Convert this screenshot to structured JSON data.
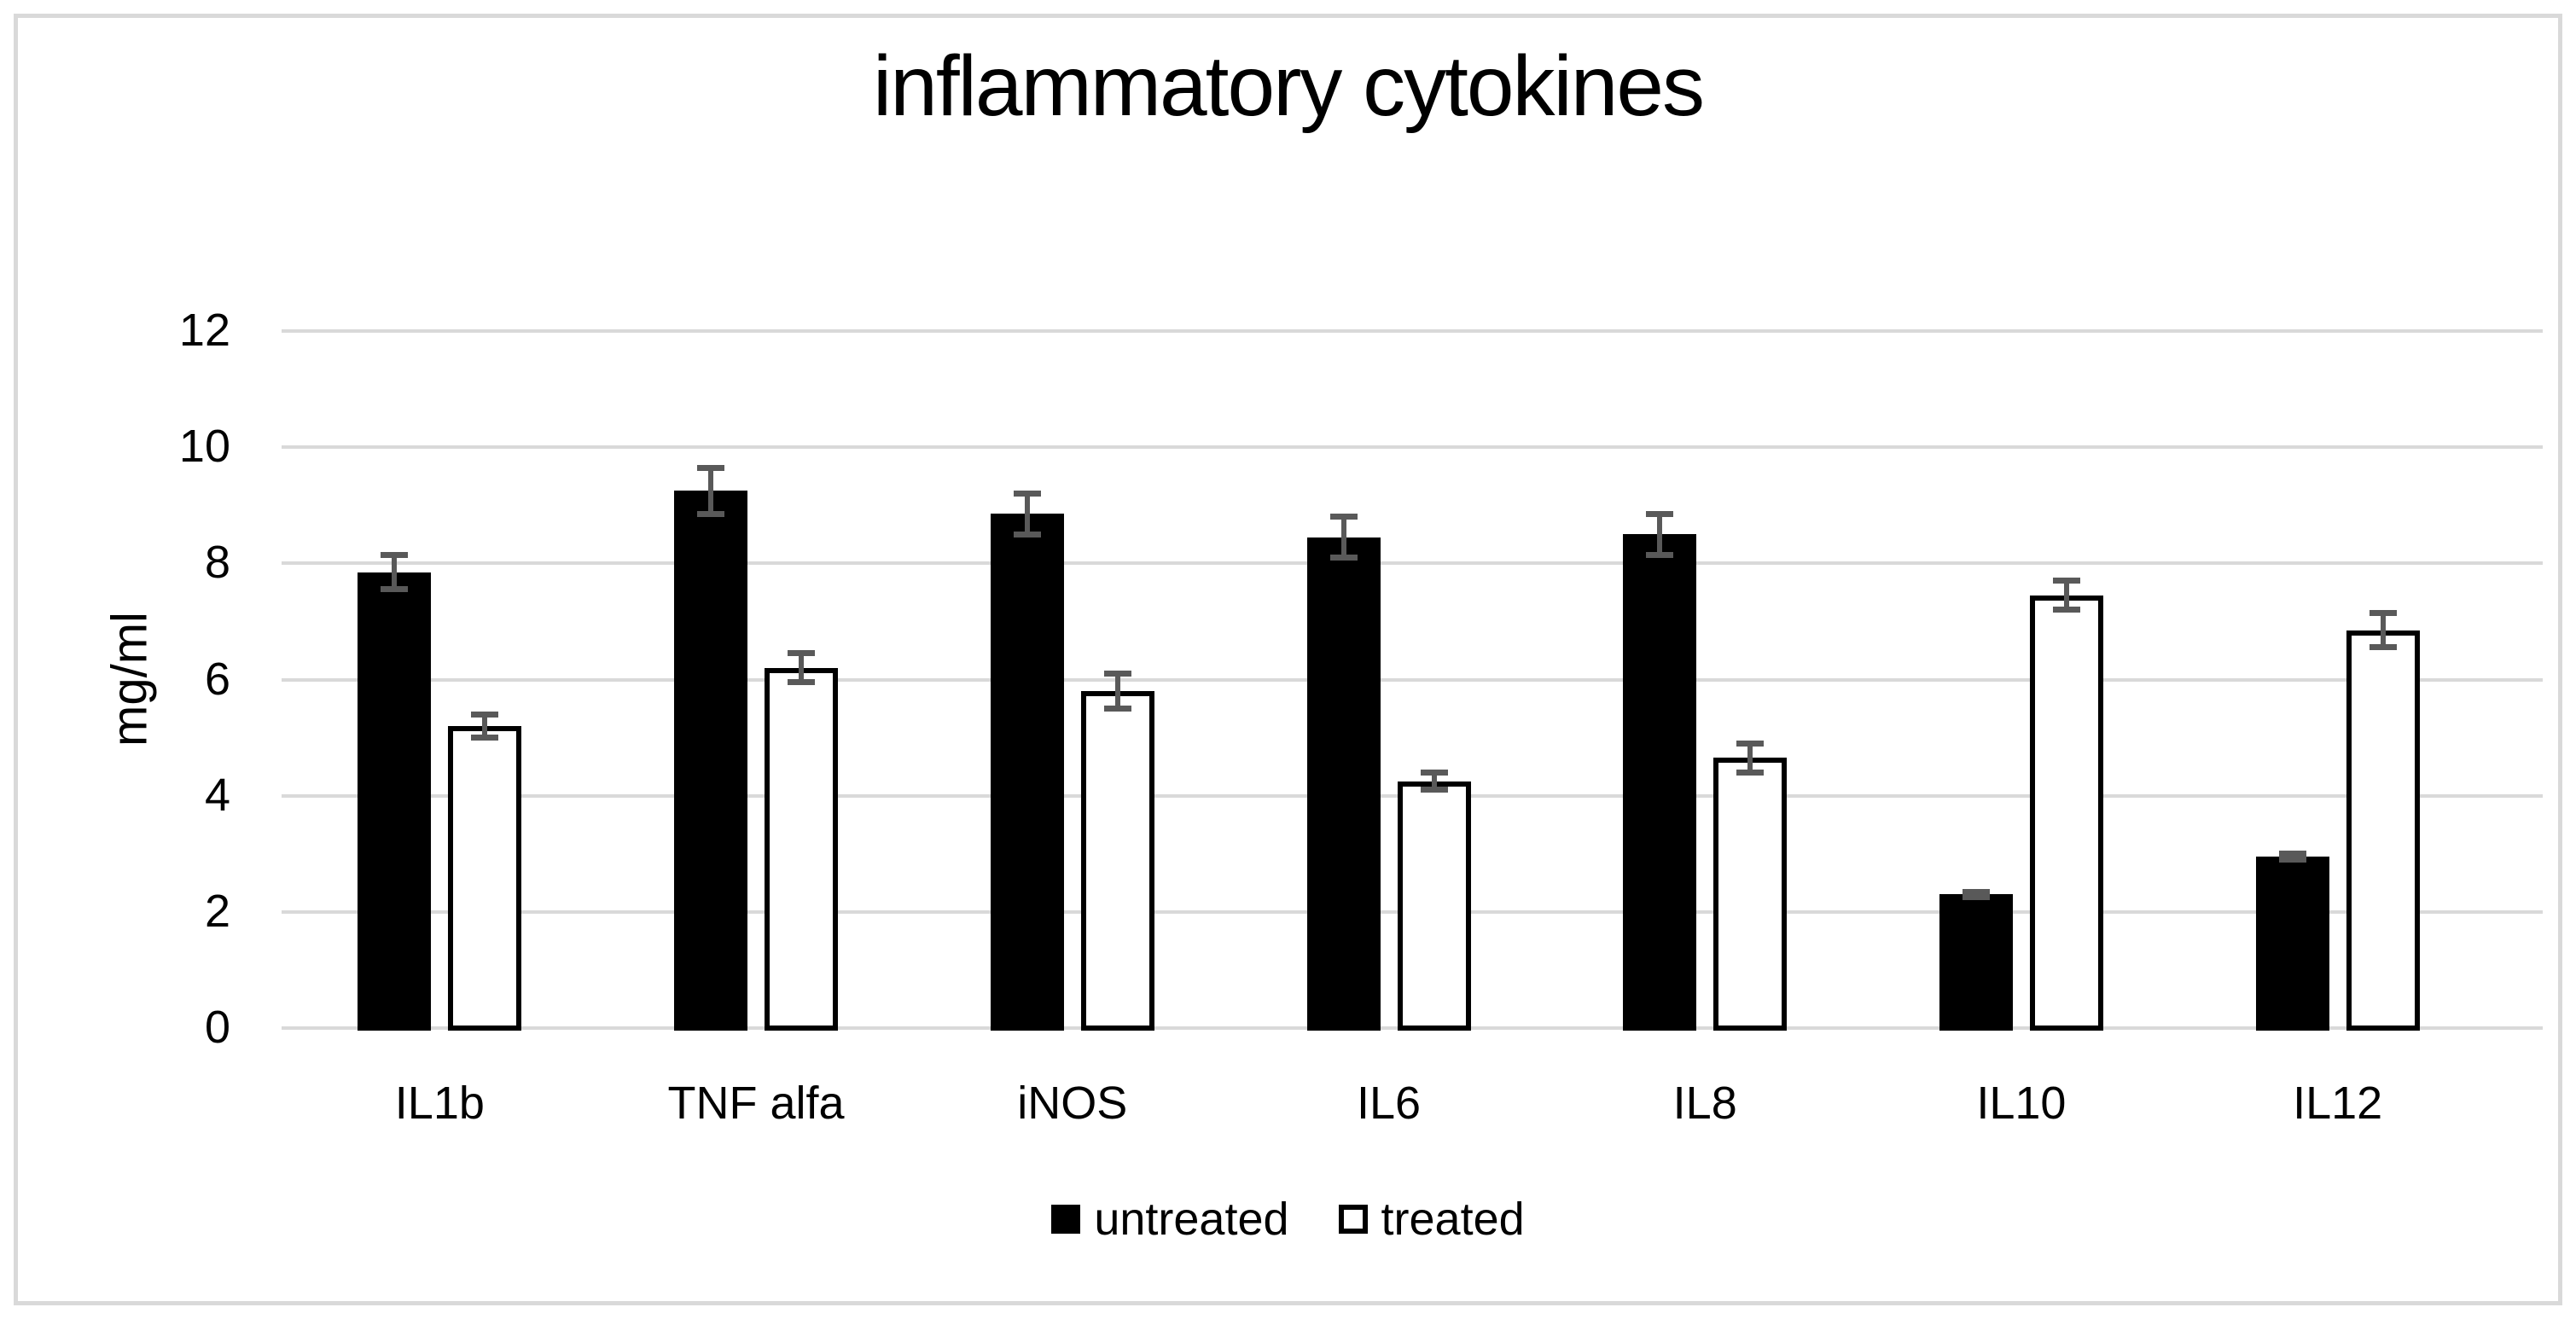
{
  "chart_data": {
    "type": "bar",
    "title": "inflammatory cytokines",
    "xlabel": "",
    "ylabel": "mg/ml",
    "categories": [
      "IL1b",
      "TNF alfa",
      "iNOS",
      "IL6",
      "IL8",
      "IL10",
      "IL12"
    ],
    "series": [
      {
        "name": "untreated",
        "style": "filled",
        "fill": "#000000",
        "values": [
          7.85,
          9.25,
          8.85,
          8.45,
          8.5,
          2.3,
          2.95
        ],
        "errors": [
          0.35,
          0.45,
          0.4,
          0.4,
          0.4,
          0.1,
          0.1
        ]
      },
      {
        "name": "treated",
        "style": "outlined",
        "fill": "#FFFFFF",
        "values": [
          5.2,
          6.2,
          5.8,
          4.25,
          4.65,
          7.45,
          6.85
        ],
        "errors": [
          0.25,
          0.3,
          0.35,
          0.2,
          0.3,
          0.3,
          0.35
        ]
      }
    ],
    "ylim": [
      0,
      12
    ],
    "yticks": [
      0,
      2,
      4,
      6,
      8,
      10,
      12
    ],
    "grid": true,
    "legend_position": "bottom",
    "colors": {
      "bar_fill": "#000000",
      "bar_outline": "#000000",
      "error_bar": "#595959",
      "gridline": "#D9D9D9",
      "figure_border": "#D9D9D9",
      "text": "#000000",
      "background": "#FFFFFF"
    }
  }
}
